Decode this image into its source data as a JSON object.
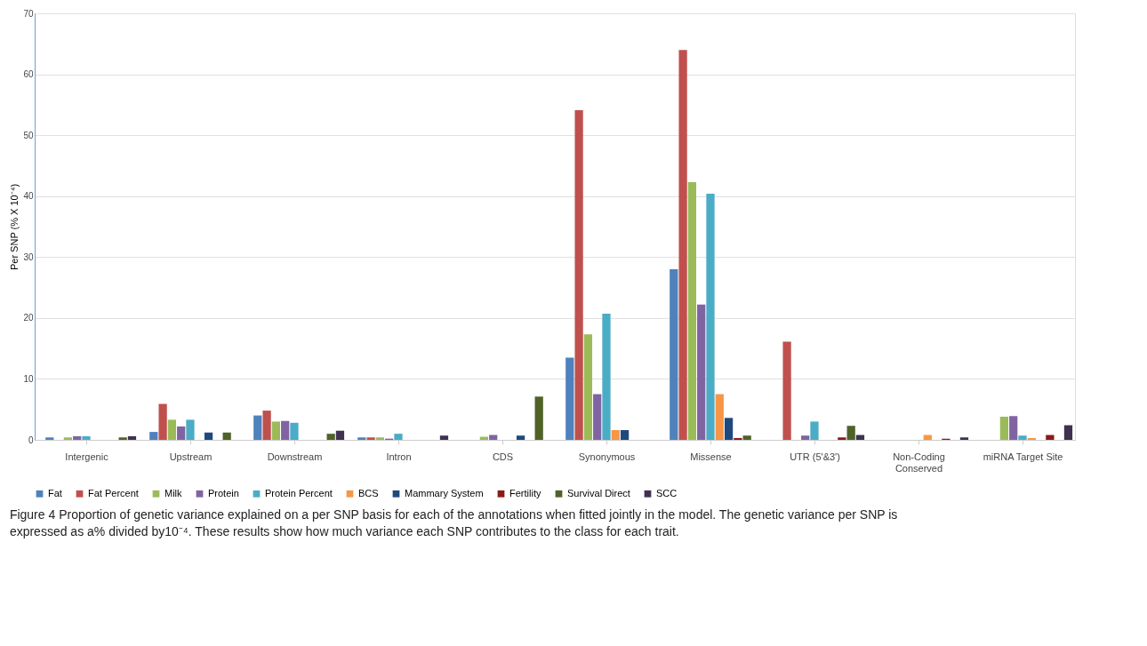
{
  "chart_data": {
    "type": "bar",
    "ylabel": "Per SNP (% X 10⁻⁴)",
    "categories": [
      "Intergenic",
      "Upstream",
      "Downstream",
      "Intron",
      "CDS",
      "Synonymous",
      "Missense",
      "UTR (5'&3')",
      "Non-Coding Conserved",
      "miRNA Target Site"
    ],
    "ylim": [
      0,
      70
    ],
    "yticks": [
      0,
      10,
      20,
      30,
      40,
      50,
      60,
      70
    ],
    "grid": "y",
    "legend": "bottom",
    "series": [
      {
        "name": "Fat",
        "color": "#4f81bd",
        "values": [
          0.4,
          1.3,
          4.0,
          0.4,
          0,
          13.5,
          28.0,
          0,
          0,
          0
        ]
      },
      {
        "name": "Fat Percent",
        "color": "#c0504d",
        "values": [
          0,
          5.9,
          4.8,
          0.4,
          0,
          54.1,
          64.0,
          16.1,
          0,
          0
        ]
      },
      {
        "name": "Milk",
        "color": "#9bbb59",
        "values": [
          0.4,
          3.3,
          3.0,
          0.4,
          0.5,
          17.3,
          42.3,
          0,
          0,
          3.8
        ]
      },
      {
        "name": "Protein",
        "color": "#8064a2",
        "values": [
          0.6,
          2.2,
          3.1,
          0.2,
          0.8,
          7.5,
          22.2,
          0.7,
          0,
          3.9
        ]
      },
      {
        "name": "Protein Percent",
        "color": "#4bacc6",
        "values": [
          0.6,
          3.3,
          2.8,
          1.0,
          0,
          20.7,
          40.4,
          3.0,
          0,
          0.7
        ]
      },
      {
        "name": "BCS",
        "color": "#f79646",
        "values": [
          0,
          0,
          0,
          0,
          0,
          1.6,
          7.5,
          0,
          0.8,
          0.3
        ]
      },
      {
        "name": "Mammary System",
        "color": "#1f497d",
        "values": [
          0,
          1.2,
          0,
          0,
          0.7,
          1.6,
          3.6,
          0,
          0,
          0
        ]
      },
      {
        "name": "Fertility",
        "color": "#8b1a1a",
        "values": [
          0,
          0,
          0,
          0,
          0,
          0,
          0.3,
          0.4,
          0.2,
          0.8
        ]
      },
      {
        "name": "Survival Direct",
        "color": "#4f6228",
        "values": [
          0.4,
          1.2,
          1.0,
          0,
          7.1,
          0,
          0.7,
          2.3,
          0,
          0
        ]
      },
      {
        "name": "SCC",
        "color": "#403151",
        "values": [
          0.6,
          0,
          1.5,
          0.7,
          0,
          0,
          0,
          0.8,
          0.4,
          2.4
        ]
      }
    ],
    "annotations": [
      "Figure 4 Proportion of genetic variance explained on a per SNP basis for each of the annotations when fitted jointly in the model. The genetic variance per SNP is expressed as a% divided by10⁻⁴. These results show how much variance each SNP contributes to the class for each trait."
    ]
  }
}
